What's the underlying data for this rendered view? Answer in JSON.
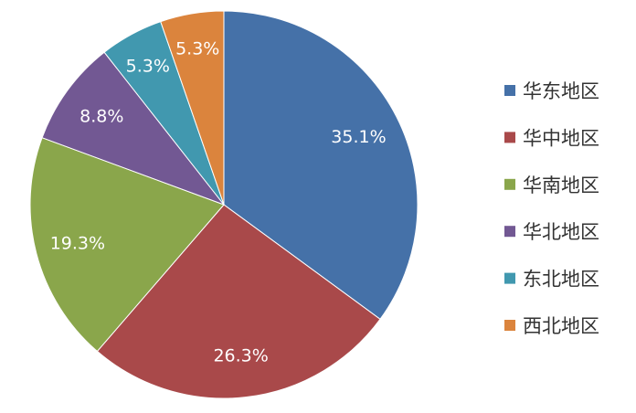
{
  "chart_data": {
    "type": "pie",
    "categories": [
      "华东地区",
      "华中地区",
      "华南地区",
      "华北地区",
      "东北地区",
      "西北地区"
    ],
    "values": [
      35.1,
      26.3,
      19.3,
      8.8,
      5.3,
      5.3
    ],
    "data_labels": [
      "35.1%",
      "26.3%",
      "19.3%",
      "8.8%",
      "5.3%",
      "5.3%"
    ],
    "colors": [
      "#4571A8",
      "#A9494A",
      "#8AA64B",
      "#725893",
      "#4198AF",
      "#DB843D"
    ],
    "start_angle": "top",
    "direction": "clockwise",
    "legend": "right"
  }
}
